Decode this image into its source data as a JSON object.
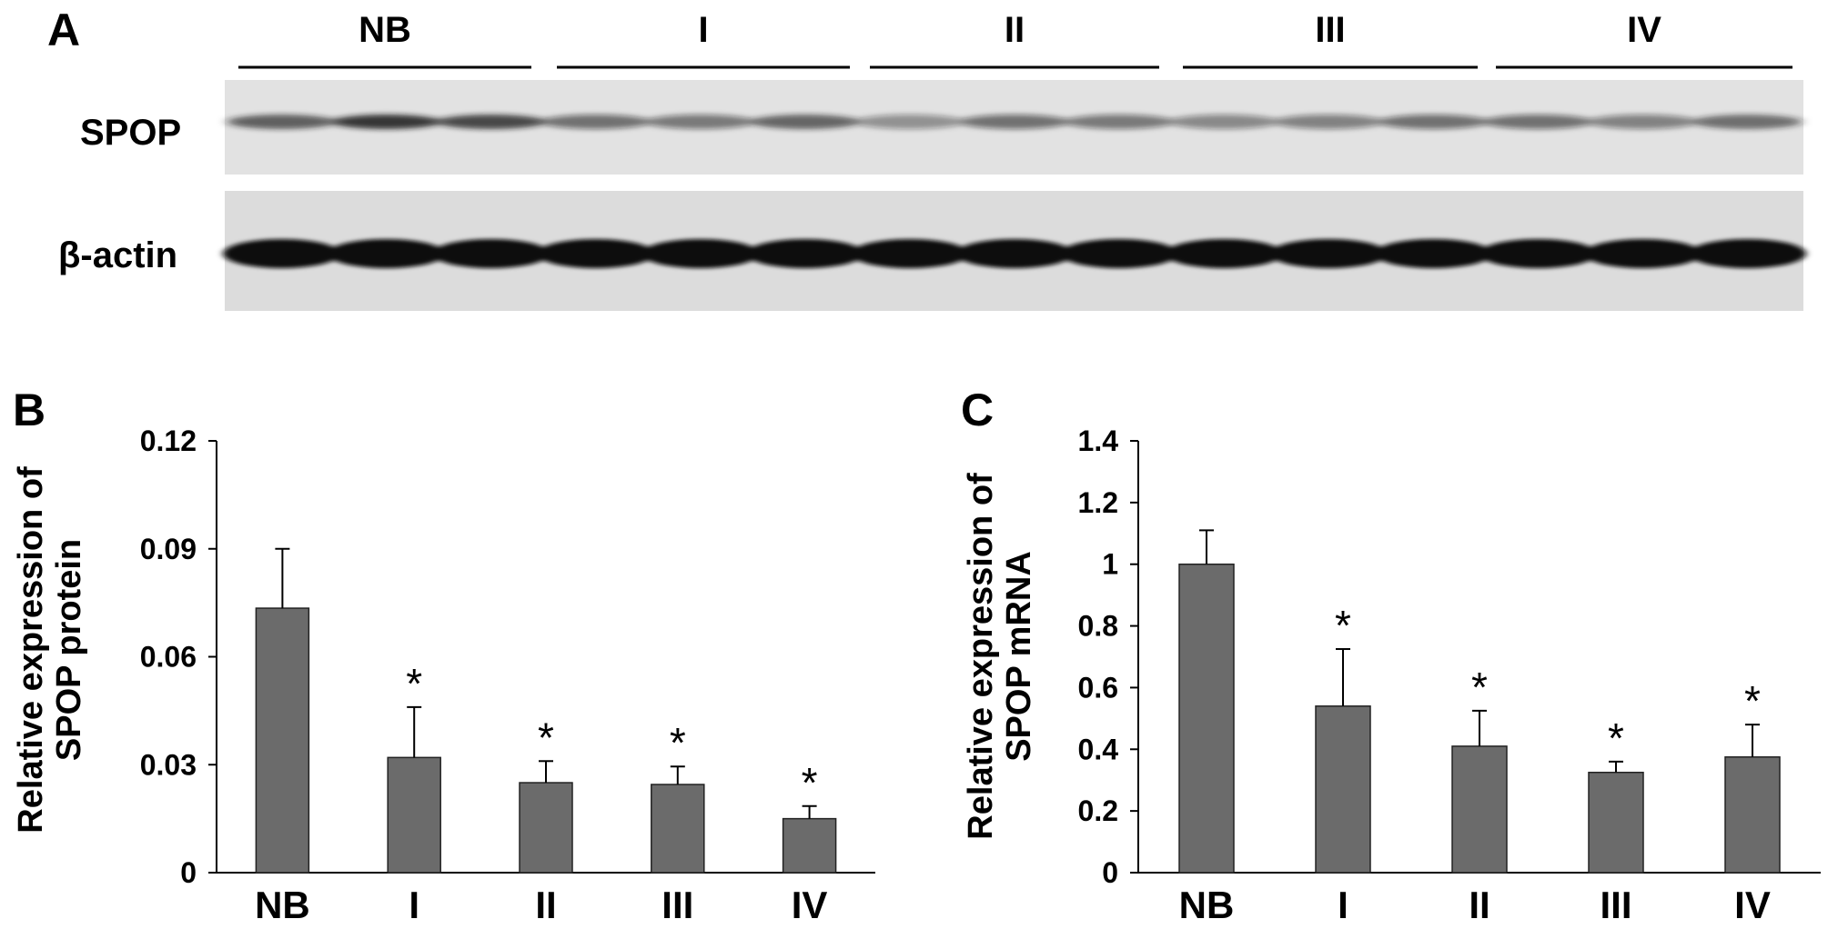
{
  "panels": {
    "a": {
      "letter": "A",
      "lane_groups": [
        "NB",
        "I",
        "II",
        "III",
        "IV"
      ],
      "bands": [
        {
          "name": "SPOP",
          "label": "SPOP",
          "intensities": [
            0.55,
            0.8,
            0.7,
            0.4,
            0.35,
            0.5,
            0.2,
            0.4,
            0.35,
            0.25,
            0.3,
            0.4,
            0.4,
            0.3,
            0.45
          ]
        },
        {
          "name": "beta-actin",
          "label": "β-actin",
          "intensities": [
            1,
            1,
            1,
            1,
            1,
            1,
            1,
            1,
            1,
            1,
            1,
            1,
            1,
            1,
            1
          ]
        }
      ]
    },
    "b": {
      "letter": "B"
    },
    "c": {
      "letter": "C"
    }
  },
  "chart_data": [
    {
      "type": "bar",
      "panel": "B",
      "categories": [
        "NB",
        "I",
        "II",
        "III",
        "IV"
      ],
      "values": [
        0.0735,
        0.032,
        0.025,
        0.0245,
        0.015
      ],
      "errors": [
        0.0165,
        0.014,
        0.006,
        0.005,
        0.0035
      ],
      "significance": [
        "",
        "*",
        "*",
        "*",
        "*"
      ],
      "ylabel_lines": [
        "Relative expression of",
        "SPOP protein"
      ],
      "ylim": [
        0,
        0.12
      ],
      "yticks": [
        0,
        0.03,
        0.06,
        0.09,
        0.12
      ],
      "ytick_labels": [
        "0",
        "0.03",
        "0.06",
        "0.09",
        "0.12"
      ],
      "bar_color": "#6b6b6b"
    },
    {
      "type": "bar",
      "panel": "C",
      "categories": [
        "NB",
        "I",
        "II",
        "III",
        "IV"
      ],
      "values": [
        1.0,
        0.54,
        0.41,
        0.325,
        0.375
      ],
      "errors": [
        0.11,
        0.185,
        0.115,
        0.035,
        0.105
      ],
      "significance": [
        "",
        "*",
        "*",
        "*",
        "*"
      ],
      "ylabel_lines": [
        "Relative expression of",
        "SPOP mRNA"
      ],
      "ylim": [
        0,
        1.4
      ],
      "yticks": [
        0,
        0.2,
        0.4,
        0.6,
        0.8,
        1,
        1.2,
        1.4
      ],
      "ytick_labels": [
        "0",
        "0.2",
        "0.4",
        "0.6",
        "0.8",
        "1",
        "1.2",
        "1.4"
      ],
      "bar_color": "#6b6b6b"
    }
  ]
}
